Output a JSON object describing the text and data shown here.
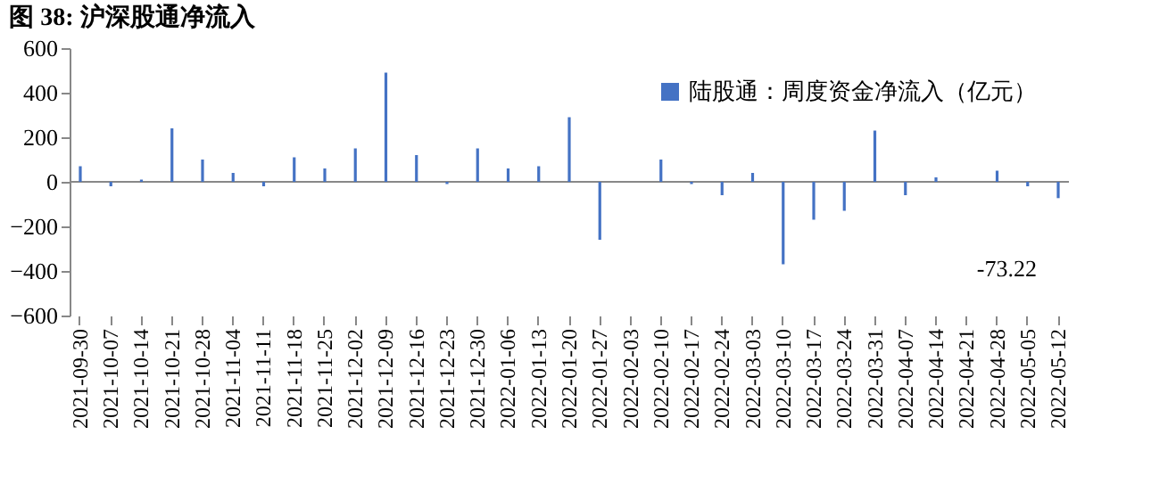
{
  "chart_data": {
    "type": "bar",
    "title": "图 38:  沪深股通净流入",
    "categories": [
      "2021-09-30",
      "2021-10-07",
      "2021-10-14",
      "2021-10-21",
      "2021-10-28",
      "2021-11-04",
      "2021-11-11",
      "2021-11-18",
      "2021-11-25",
      "2021-12-02",
      "2021-12-09",
      "2021-12-16",
      "2021-12-23",
      "2021-12-30",
      "2022-01-06",
      "2022-01-13",
      "2022-01-20",
      "2022-01-27",
      "2022-02-03",
      "2022-02-10",
      "2022-02-17",
      "2022-02-24",
      "2022-03-03",
      "2022-03-10",
      "2022-03-17",
      "2022-03-24",
      "2022-03-31",
      "2022-04-07",
      "2022-04-14",
      "2022-04-21",
      "2022-04-28",
      "2022-05-05",
      "2022-05-12"
    ],
    "series": [
      {
        "name": "陆股通：周度资金净流入（亿元）",
        "color": "#4472c4",
        "values": [
          70,
          -20,
          10,
          240,
          100,
          40,
          -20,
          110,
          60,
          150,
          490,
          120,
          -10,
          150,
          60,
          70,
          290,
          -260,
          0,
          100,
          -10,
          -60,
          40,
          -370,
          -170,
          -130,
          230,
          -60,
          20,
          0,
          50,
          -20,
          -73.22
        ]
      }
    ],
    "ylim": [
      -600,
      600
    ],
    "yticks": [
      -600,
      -400,
      -200,
      0,
      200,
      400,
      600
    ],
    "annotations": [
      {
        "text": "-73.22",
        "x": "2022-05-12",
        "y": -73.22
      }
    ],
    "ref_lines": [
      {
        "axis": "y",
        "value": 0,
        "color": "#888888"
      }
    ],
    "legend": "top right",
    "grid": false
  }
}
